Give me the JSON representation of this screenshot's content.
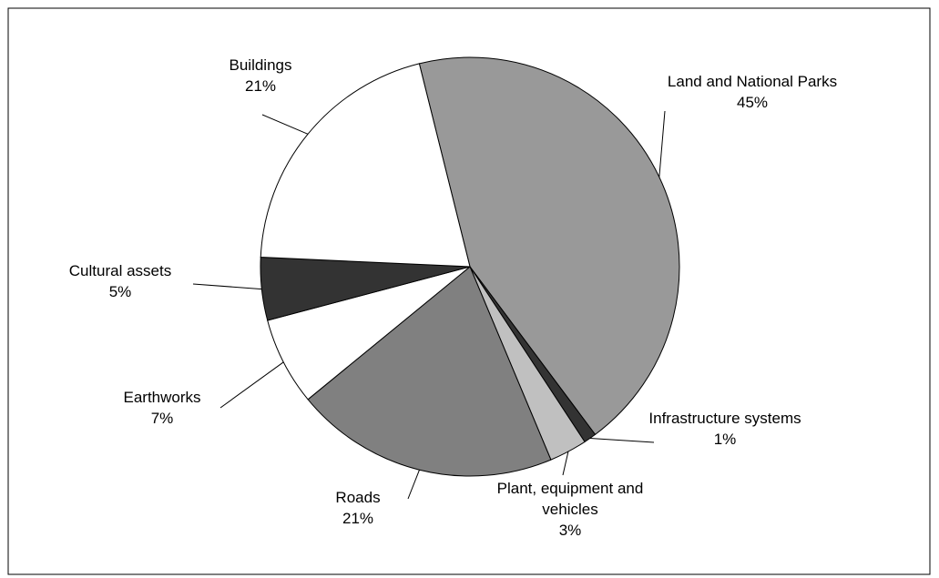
{
  "chart_data": {
    "type": "pie",
    "categories": [
      "Land and National Parks",
      "Infrastructure systems",
      "Plant, equipment and vehicles",
      "Roads",
      "Earthworks",
      "Cultural assets",
      "Buildings"
    ],
    "values": [
      45,
      1,
      3,
      21,
      7,
      5,
      21
    ],
    "value_labels": [
      "45%",
      "1%",
      "3%",
      "21%",
      "7%",
      "5%",
      "21%"
    ],
    "colors": [
      "#999999",
      "#333333",
      "#c0c0c0",
      "#808080",
      "#ffffff",
      "#333333",
      "#ffffff"
    ]
  }
}
